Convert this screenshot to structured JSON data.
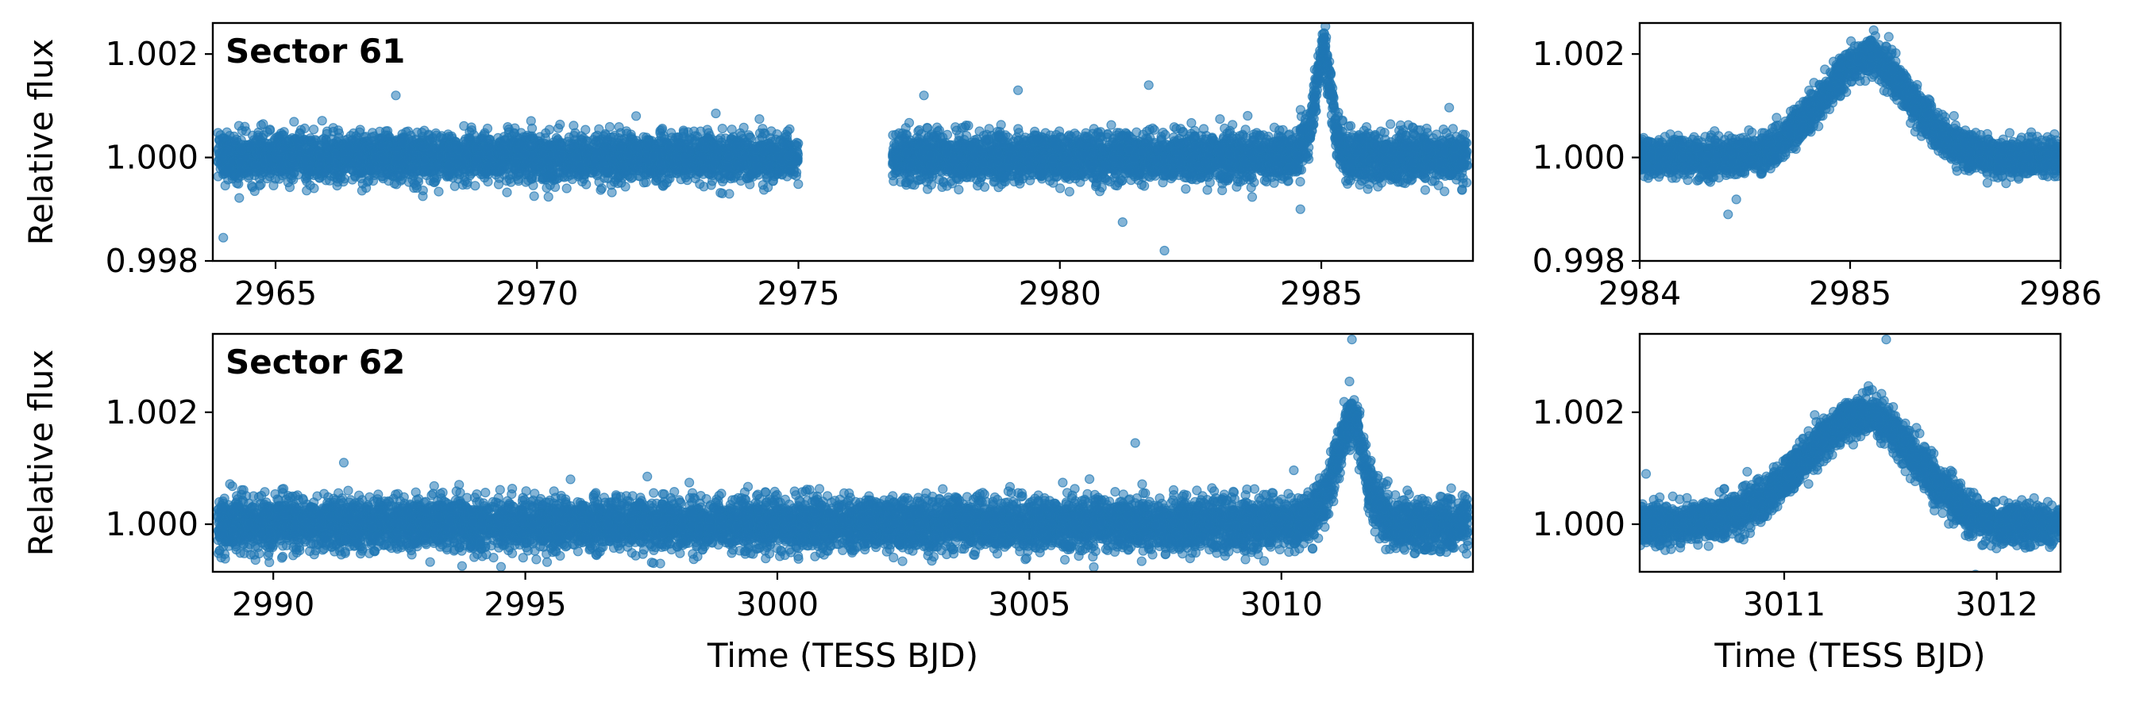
{
  "chart_data": [
    {
      "id": "s61-full",
      "type": "scatter",
      "title": "Sector 61",
      "xlabel": "",
      "ylabel": "Relative flux",
      "xlim": [
        2963.8,
        2987.9
      ],
      "ylim": [
        0.998,
        1.0026
      ],
      "xticks": [
        2965,
        2970,
        2975,
        2980,
        2985
      ],
      "xtick_labels": [
        "2965",
        "2970",
        "2975",
        "2980",
        "2985"
      ],
      "yticks": [
        0.998,
        1.0,
        1.002
      ],
      "ytick_labels": [
        "0.998",
        "1.000",
        "1.002"
      ],
      "color": "#1f77b4",
      "legend": "none",
      "grid": false,
      "series": [
        {
          "x": [
            2963.9,
            2964.3,
            2964.8,
            2965.3,
            2965.8,
            2966.3,
            2966.8,
            2967.3,
            2967.8,
            2968.3,
            2968.8,
            2969.3,
            2969.6,
            2970.1,
            2970.6,
            2971.1,
            2971.6,
            2972.1,
            2972.6,
            2973.1,
            2973.6,
            2974.1,
            2974.6,
            2975.0,
            2976.8,
            2977.3,
            2977.8,
            2978.3,
            2978.8,
            2979.3,
            2979.8,
            2980.3,
            2980.8,
            2981.3,
            2981.8,
            2982.2,
            2982.5,
            2983.0,
            2983.5,
            2984.0,
            2984.5,
            2984.8,
            2984.95,
            2985.05,
            2985.15,
            2985.3,
            2985.5,
            2986.0,
            2986.5,
            2987.0,
            2987.5,
            2987.8
          ],
          "y": [
            1.0,
            1.0,
            1.0,
            1.0,
            1.0,
            1.0,
            1.0,
            1.0,
            1.0,
            1.0,
            1.0,
            1.0,
            1.0,
            1.0,
            1.0,
            1.0,
            1.0,
            1.0,
            1.0,
            1.0,
            1.0,
            1.0,
            1.0,
            1.0,
            1.0,
            1.0,
            1.0,
            1.0,
            1.0,
            1.0,
            1.0,
            1.0,
            1.0,
            1.0,
            1.0,
            1.0,
            1.0,
            1.0,
            1.0,
            1.0,
            1.0,
            1.0006,
            1.0017,
            1.0023,
            1.0015,
            1.0004,
            1.0,
            1.0,
            1.0,
            1.0,
            1.0,
            1.0
          ],
          "scatter": 0.00045
        }
      ],
      "outliers": [
        {
          "x": 2964.0,
          "y": 0.99845
        },
        {
          "x": 2967.3,
          "y": 1.0012
        },
        {
          "x": 2977.4,
          "y": 1.0012
        },
        {
          "x": 2979.2,
          "y": 1.0013
        },
        {
          "x": 2981.7,
          "y": 1.0014
        },
        {
          "x": 2982.0,
          "y": 0.9982
        },
        {
          "x": 2981.2,
          "y": 0.99875
        },
        {
          "x": 2984.6,
          "y": 0.999
        }
      ]
    },
    {
      "id": "s61-zoom",
      "type": "scatter",
      "title": "",
      "xlabel": "",
      "ylabel": "",
      "xlim": [
        2984,
        2986
      ],
      "ylim": [
        0.998,
        1.0026
      ],
      "xticks": [
        2984,
        2985,
        2986
      ],
      "xtick_labels": [
        "2984",
        "2985",
        "2986"
      ],
      "yticks": [
        0.998,
        1.0,
        1.002
      ],
      "ytick_labels": [
        "0.998",
        "1.000",
        "1.002"
      ],
      "color": "#1f77b4",
      "legend": "none",
      "grid": false,
      "series": [
        {
          "x": [
            2984.0,
            2984.2,
            2984.4,
            2984.6,
            2984.75,
            2984.9,
            2985.0,
            2985.1,
            2985.2,
            2985.35,
            2985.5,
            2985.7,
            2985.9,
            2986.0
          ],
          "y": [
            1.0,
            1.0,
            1.0,
            1.0001,
            1.0006,
            1.0013,
            1.0018,
            1.002,
            1.0016,
            1.0008,
            1.0002,
            1.0,
            1.0,
            1.0
          ],
          "scatter": 0.00035
        }
      ],
      "outliers": [
        {
          "x": 2984.42,
          "y": 0.9989
        },
        {
          "x": 2985.12,
          "y": 1.00235
        }
      ]
    },
    {
      "id": "s62-full",
      "type": "scatter",
      "title": "Sector 62",
      "xlabel": "Time (TESS BJD)",
      "ylabel": "Relative flux",
      "xlim": [
        2988.8,
        3013.8
      ],
      "ylim": [
        0.99915,
        1.0034
      ],
      "xticks": [
        2990,
        2995,
        3000,
        3005,
        3010
      ],
      "xtick_labels": [
        "2990",
        "2995",
        "3000",
        "3005",
        "3010"
      ],
      "yticks": [
        1.0,
        1.002
      ],
      "ytick_labels": [
        "1.000",
        "1.002"
      ],
      "color": "#1f77b4",
      "legend": "none",
      "grid": false,
      "series": [
        {
          "x": [
            2988.9,
            2989.4,
            2989.9,
            2990.4,
            2990.9,
            2991.4,
            2991.9,
            2992.4,
            2992.9,
            2993.4,
            2993.9,
            2994.4,
            2994.9,
            2995.1,
            2995.6,
            2996.1,
            2996.6,
            2997.1,
            2997.6,
            2998.1,
            2998.6,
            2999.1,
            2999.6,
            3000.1,
            3000.7,
            3001.6,
            3002.1,
            3002.6,
            3003.1,
            3003.6,
            3004.1,
            3004.6,
            3005.1,
            3005.6,
            3006.1,
            3006.6,
            3007.1,
            3007.5,
            3007.8,
            3008.3,
            3008.8,
            3009.3,
            3009.8,
            3010.3,
            3010.8,
            3011.1,
            3011.3,
            3011.45,
            3011.6,
            3011.8,
            3012.2,
            3012.7,
            3013.2,
            3013.7
          ],
          "y": [
            1.0,
            1.0,
            1.0,
            1.0,
            1.0,
            1.0,
            1.0,
            1.0,
            1.0,
            1.0,
            1.0,
            1.0,
            1.0,
            1.0,
            1.0,
            1.0,
            1.0,
            1.0,
            1.0,
            1.0,
            1.0,
            1.0,
            1.0,
            1.0,
            1.0,
            1.0,
            1.0,
            1.0,
            1.0,
            1.0,
            1.0,
            1.0,
            1.0,
            1.0,
            1.0,
            1.0,
            1.0,
            1.0,
            1.0,
            1.0,
            1.0,
            1.0,
            1.0,
            1.0,
            1.0003,
            1.0011,
            1.0018,
            1.002,
            1.0013,
            1.0005,
            1.0,
            1.0,
            1.0,
            1.0
          ],
          "scatter": 0.00045
        }
      ],
      "outliers": [
        {
          "x": 2991.4,
          "y": 1.0011
        },
        {
          "x": 2993.4,
          "y": 0.99885
        },
        {
          "x": 2999.8,
          "y": 0.9987
        },
        {
          "x": 3007.0,
          "y": 0.99865
        },
        {
          "x": 3007.1,
          "y": 1.00145
        },
        {
          "x": 3011.4,
          "y": 1.0033
        },
        {
          "x": 3011.35,
          "y": 1.00255
        }
      ]
    },
    {
      "id": "s62-zoom",
      "type": "scatter",
      "title": "",
      "xlabel": "Time (TESS BJD)",
      "ylabel": "",
      "xlim": [
        3010.32,
        3012.3
      ],
      "ylim": [
        0.99915,
        1.0034
      ],
      "xticks": [
        3011,
        3012
      ],
      "xtick_labels": [
        "3011",
        "3012"
      ],
      "yticks": [
        1.0,
        1.002
      ],
      "ytick_labels": [
        "1.000",
        "1.002"
      ],
      "color": "#1f77b4",
      "legend": "none",
      "grid": false,
      "series": [
        {
          "x": [
            3010.32,
            3010.5,
            3010.7,
            3010.85,
            3011.0,
            3011.15,
            3011.3,
            3011.42,
            3011.55,
            3011.7,
            3011.85,
            3012.0,
            3012.15,
            3012.3
          ],
          "y": [
            1.0,
            1.0,
            1.0001,
            1.0003,
            1.0008,
            1.0014,
            1.0019,
            1.002,
            1.0015,
            1.0008,
            1.0002,
            1.0,
            1.0,
            1.0
          ],
          "scatter": 0.00035
        }
      ],
      "outliers": [
        {
          "x": 3011.48,
          "y": 1.0033
        },
        {
          "x": 3010.35,
          "y": 1.0009
        },
        {
          "x": 3011.9,
          "y": 0.9991
        }
      ]
    }
  ]
}
